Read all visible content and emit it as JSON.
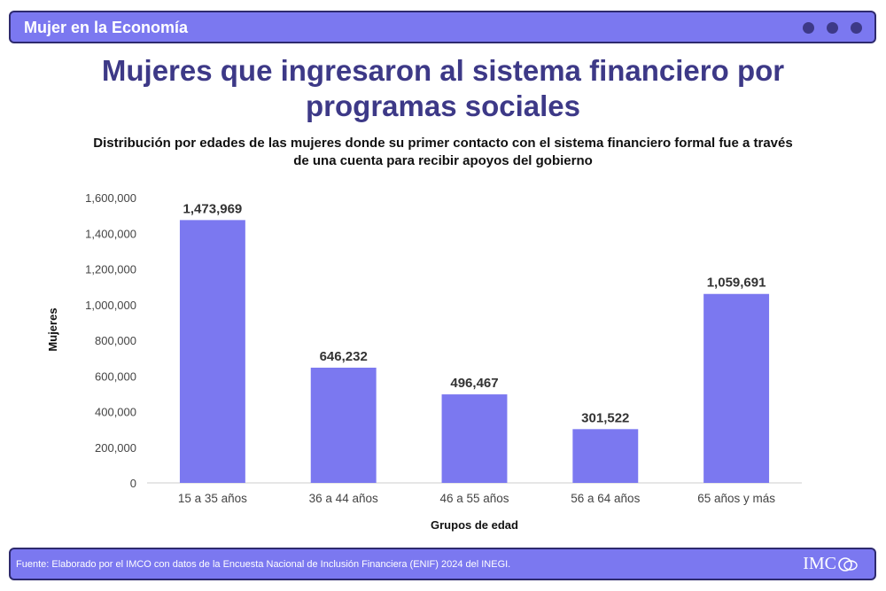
{
  "header": {
    "title": "Mujer en la Economía"
  },
  "main_title": "Mujeres que ingresaron al sistema financiero por programas sociales",
  "subtitle": "Distribución por edades de las mujeres donde su primer contacto con el sistema financiero formal fue a través de una cuenta para recibir apoyos del gobierno",
  "footer": {
    "source": "Fuente: Elaborado por el IMCO con datos de la Encuesta Nacional de Inclusión Financiera (ENIF) 2024 del INEGI.",
    "logo_text": "IMC"
  },
  "colors": {
    "bar": "#7b78f0",
    "title": "#3d3987",
    "header_bg": "#7b78f0"
  },
  "chart_data": {
    "type": "bar",
    "categories": [
      "15 a 35 años",
      "36 a 44 años",
      "46 a 55 años",
      "56 a 64 años",
      "65 años y más"
    ],
    "values": [
      1473969,
      646232,
      496467,
      301522,
      1059691
    ],
    "value_labels": [
      "1,473,969",
      "646,232",
      "496,467",
      "301,522",
      "1,059,691"
    ],
    "xlabel": "Grupos de edad",
    "ylabel": "Mujeres",
    "ylim": [
      0,
      1600000
    ],
    "yticks": [
      0,
      200000,
      400000,
      600000,
      800000,
      1000000,
      1200000,
      1400000,
      1600000
    ],
    "ytick_labels": [
      "0",
      "200,000",
      "400,000",
      "600,000",
      "800,000",
      "1,000,000",
      "1,200,000",
      "1,400,000",
      "1,600,000"
    ],
    "grid": false,
    "legend": "none"
  }
}
